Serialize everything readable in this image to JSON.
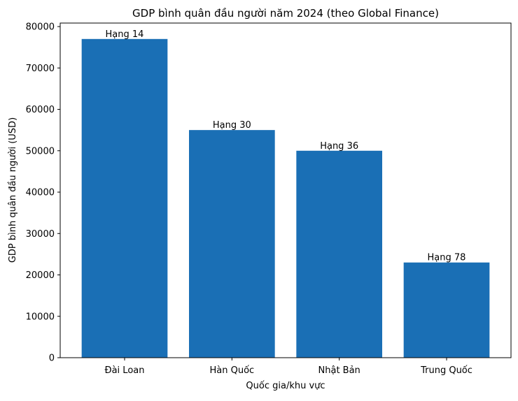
{
  "chart_data": {
    "type": "bar",
    "title": "GDP bình quân đầu người năm 2024 (theo Global Finance)",
    "xlabel": "Quốc gia/khu vực",
    "ylabel": "GDP bình quân đầu người (USD)",
    "categories": [
      "Đài Loan",
      "Hàn Quốc",
      "Nhật Bản",
      "Trung Quốc"
    ],
    "values": [
      77000,
      55000,
      50000,
      23000
    ],
    "data_labels": [
      "Hạng 14",
      "Hạng 30",
      "Hạng 36",
      "Hạng 78"
    ],
    "ylim": [
      0,
      80850
    ],
    "yticks": [
      0,
      10000,
      20000,
      30000,
      40000,
      50000,
      60000,
      70000,
      80000
    ],
    "grid": false,
    "bar_color": "#1a6fb5"
  }
}
